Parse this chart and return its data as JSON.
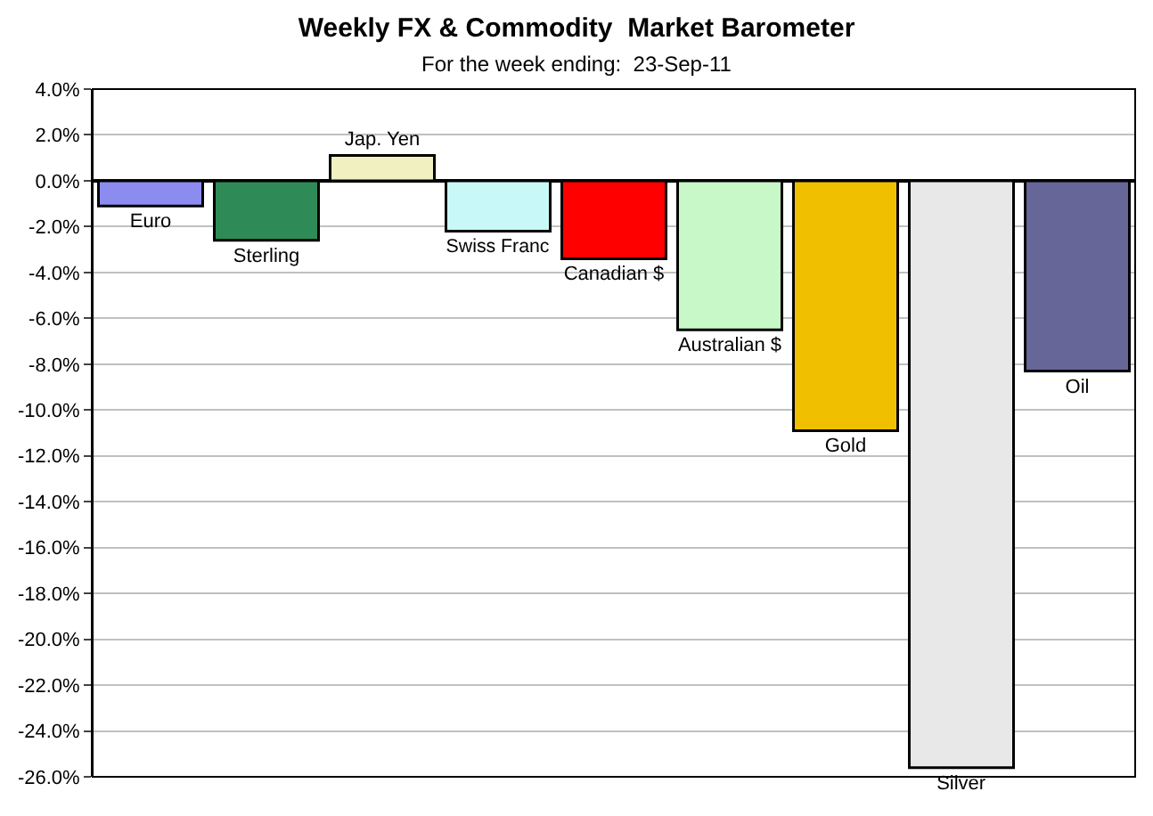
{
  "chart_data": {
    "type": "bar",
    "title": "Weekly FX & Commodity  Market Barometer",
    "subtitle": "For the week ending:  23-Sep-11",
    "categories": [
      "Euro",
      "Sterling",
      "Jap. Yen",
      "Swiss Franc",
      "Canadian $",
      "Australian $",
      "Gold",
      "Silver",
      "Oil"
    ],
    "values": [
      -1.1,
      -2.6,
      1.1,
      -2.2,
      -3.4,
      -6.5,
      -10.9,
      -25.6,
      -8.3
    ],
    "colors": [
      "#8c8cf0",
      "#2e8b57",
      "#f0f0c0",
      "#c8f8f8",
      "#ff0000",
      "#c8f8c8",
      "#f0c000",
      "#e8e8e8",
      "#666699"
    ],
    "ylim": [
      -26,
      4
    ],
    "yticks": [
      {
        "value": 4,
        "label": "4.0%"
      },
      {
        "value": 2,
        "label": "2.0%"
      },
      {
        "value": 0,
        "label": "0.0%"
      },
      {
        "value": -2,
        "label": "-2.0%"
      },
      {
        "value": -4,
        "label": "-4.0%"
      },
      {
        "value": -6,
        "label": "-6.0%"
      },
      {
        "value": -8,
        "label": "-8.0%"
      },
      {
        "value": -10,
        "label": "-10.0%"
      },
      {
        "value": -12,
        "label": "-12.0%"
      },
      {
        "value": -14,
        "label": "-14.0%"
      },
      {
        "value": -16,
        "label": "-16.0%"
      },
      {
        "value": -18,
        "label": "-18.0%"
      },
      {
        "value": -20,
        "label": "-20.0%"
      },
      {
        "value": -22,
        "label": "-22.0%"
      },
      {
        "value": -24,
        "label": "-24.0%"
      },
      {
        "value": -26,
        "label": "-26.0%"
      }
    ],
    "grid": "y",
    "tick_labels": "y"
  }
}
